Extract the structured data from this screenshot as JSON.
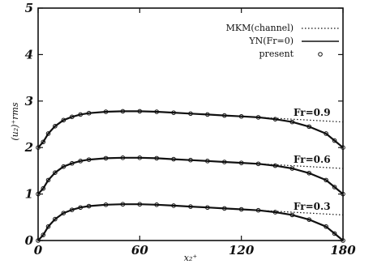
{
  "chart_data": {
    "type": "line",
    "title": "",
    "xlabel": "x₂⁺",
    "ylabel": "(u₂)⁺rms",
    "xlim": [
      0,
      180
    ],
    "ylim": [
      0,
      5
    ],
    "x_ticks": [
      "0",
      "60",
      "120",
      "180"
    ],
    "y_ticks": [
      "0",
      "1",
      "2",
      "3",
      "4",
      "5"
    ],
    "grid": false,
    "legend_position": "top-right",
    "legend": [
      {
        "label": "MKM(channel)",
        "style": "dotted"
      },
      {
        "label": "YN(Fr=0)",
        "style": "solid"
      },
      {
        "label": "present",
        "style": "circles"
      }
    ],
    "annotations": [
      "Fr=0.9",
      "Fr=0.6",
      "Fr=0.3"
    ],
    "offsets": [
      2,
      1,
      0
    ],
    "series": [
      {
        "name": "MKM(channel)",
        "x": [
          0,
          3,
          6,
          10,
          15,
          20,
          25,
          30,
          40,
          50,
          60,
          70,
          80,
          90,
          100,
          110,
          120,
          130,
          140,
          150,
          160,
          170,
          180
        ],
        "values": [
          0.0,
          0.12,
          0.3,
          0.46,
          0.59,
          0.66,
          0.71,
          0.74,
          0.77,
          0.78,
          0.78,
          0.77,
          0.75,
          0.73,
          0.71,
          0.69,
          0.67,
          0.65,
          0.63,
          0.61,
          0.59,
          0.57,
          0.55
        ]
      },
      {
        "name": "YN(Fr=0)",
        "x": [
          0,
          3,
          6,
          10,
          15,
          20,
          25,
          30,
          40,
          50,
          60,
          70,
          80,
          90,
          100,
          110,
          120,
          130,
          140,
          150,
          160,
          170,
          175,
          180
        ],
        "values": [
          0.0,
          0.12,
          0.3,
          0.46,
          0.59,
          0.66,
          0.71,
          0.74,
          0.77,
          0.78,
          0.78,
          0.77,
          0.75,
          0.73,
          0.71,
          0.69,
          0.67,
          0.65,
          0.61,
          0.55,
          0.45,
          0.3,
          0.15,
          0.0
        ]
      },
      {
        "name": "present",
        "x": [
          0,
          3,
          6,
          10,
          15,
          20,
          25,
          30,
          40,
          50,
          60,
          70,
          80,
          90,
          100,
          110,
          120,
          130,
          140,
          150,
          160,
          170,
          175,
          180
        ],
        "values": [
          0.0,
          0.12,
          0.3,
          0.46,
          0.59,
          0.66,
          0.71,
          0.74,
          0.77,
          0.78,
          0.78,
          0.77,
          0.75,
          0.73,
          0.71,
          0.69,
          0.67,
          0.65,
          0.61,
          0.55,
          0.45,
          0.3,
          0.15,
          0.0
        ]
      }
    ]
  }
}
